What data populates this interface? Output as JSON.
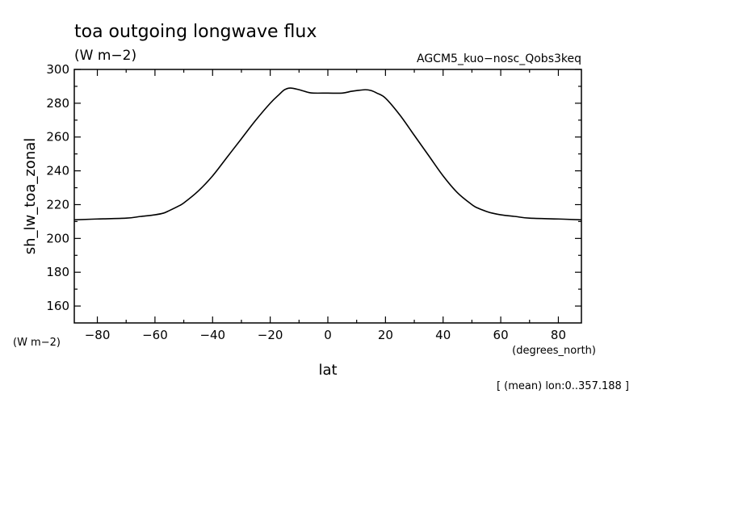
{
  "chart_data": {
    "type": "line",
    "title": "toa outgoing longwave flux",
    "units": "(W m−2)",
    "experiment": "AGCM5_kuo−nosc_Qobs3keq",
    "ylabel": "sh_lw_toa_zonal",
    "yunits": "(W m−2)",
    "xlabel": "lat",
    "xunits": "(degrees_north)",
    "footnote": "[ (mean) lon:0..357.188 ]",
    "xlim": [
      -88,
      88
    ],
    "ylim": [
      150,
      300
    ],
    "xticks": [
      -80,
      -60,
      -40,
      -20,
      0,
      20,
      40,
      60,
      80
    ],
    "xtick_labels": [
      "−80",
      "−60",
      "−40",
      "−20",
      "0",
      "20",
      "40",
      "60",
      "80"
    ],
    "yticks": [
      160,
      180,
      200,
      220,
      240,
      260,
      280,
      300
    ],
    "ytick_labels": [
      "160",
      "180",
      "200",
      "220",
      "240",
      "260",
      "280",
      "300"
    ],
    "line_color": "#000000",
    "series": [
      {
        "x": [
          -88,
          -80,
          -70,
          -65,
          -60,
          -57,
          -55,
          -52,
          -50,
          -45,
          -40,
          -35,
          -30,
          -25,
          -20,
          -17,
          -15,
          -13,
          -10,
          -7,
          -5,
          0,
          5,
          8,
          10,
          13,
          15,
          17,
          20,
          25,
          30,
          35,
          40,
          45,
          50,
          52,
          55,
          57,
          60,
          65,
          70,
          80,
          88
        ],
        "y": [
          211,
          211.5,
          212,
          213,
          214,
          215,
          216.5,
          219,
          221,
          228,
          237,
          248,
          259,
          270,
          280,
          285,
          288,
          289,
          288,
          286.5,
          286,
          286,
          286,
          287,
          287.5,
          288,
          287.5,
          286,
          283,
          273,
          261,
          249,
          237,
          227,
          220,
          218,
          216,
          215,
          214,
          213,
          212,
          211.5,
          211
        ]
      }
    ]
  }
}
